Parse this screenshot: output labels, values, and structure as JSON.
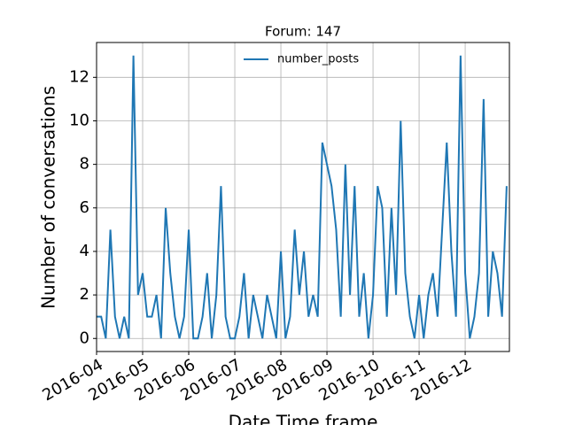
{
  "chart_data": {
    "type": "line",
    "title": "Forum: 147",
    "x_label": "Date Time frame",
    "y_label": "Number of conversations",
    "x": [
      4.0,
      4.1,
      4.2,
      4.3,
      4.4,
      4.5,
      4.6,
      4.7,
      4.8,
      4.9,
      5.0,
      5.1,
      5.2,
      5.3,
      5.4,
      5.5,
      5.6,
      5.7,
      5.8,
      5.9,
      6.0,
      6.1,
      6.2,
      6.3,
      6.4,
      6.5,
      6.6,
      6.7,
      6.8,
      6.9,
      7.0,
      7.1,
      7.2,
      7.3,
      7.4,
      7.5,
      7.6,
      7.7,
      7.8,
      7.9,
      8.0,
      8.1,
      8.2,
      8.3,
      8.4,
      8.5,
      8.6,
      8.7,
      8.8,
      8.9,
      9.0,
      9.1,
      9.2,
      9.3,
      9.4,
      9.5,
      9.6,
      9.7,
      9.8,
      9.9,
      10.0,
      10.1,
      10.2,
      10.3,
      10.4,
      10.5,
      10.6,
      10.7,
      10.8,
      10.9,
      11.0,
      11.1,
      11.2,
      11.3,
      11.4,
      11.5,
      11.6,
      11.7,
      11.8,
      11.9,
      12.0,
      12.1,
      12.2,
      12.3,
      12.4,
      12.5,
      12.6,
      12.7,
      12.8,
      12.9
    ],
    "series": [
      {
        "name": "number_posts",
        "color": "#1f77b4",
        "values": [
          1,
          1,
          0,
          5,
          1,
          0,
          1,
          0,
          13,
          2,
          3,
          1,
          1,
          2,
          0,
          6,
          3,
          1,
          0,
          1,
          5,
          0,
          0,
          1,
          3,
          0,
          2,
          7,
          1,
          0,
          0,
          1,
          3,
          0,
          2,
          1,
          0,
          2,
          1,
          0,
          4,
          0,
          1,
          5,
          2,
          4,
          1,
          2,
          1,
          9,
          8,
          7,
          5,
          1,
          8,
          2,
          7,
          1,
          3,
          0,
          2,
          7,
          6,
          1,
          6,
          2,
          10,
          3,
          1,
          0,
          2,
          0,
          2,
          3,
          1,
          5,
          9,
          4,
          1,
          13,
          3,
          0,
          1,
          3,
          11,
          1,
          4,
          3,
          1,
          7
        ]
      }
    ],
    "xlim": [
      4,
      12.96
    ],
    "ylim": [
      -0.6,
      13.6
    ],
    "xticks": [
      {
        "value": 4,
        "label": "2016-04"
      },
      {
        "value": 5,
        "label": "2016-05"
      },
      {
        "value": 6,
        "label": "2016-06"
      },
      {
        "value": 7,
        "label": "2016-07"
      },
      {
        "value": 8,
        "label": "2016-08"
      },
      {
        "value": 9,
        "label": "2016-09"
      },
      {
        "value": 10,
        "label": "2016-10"
      },
      {
        "value": 11,
        "label": "2016-11"
      },
      {
        "value": 12,
        "label": "2016-12"
      }
    ],
    "yticks": [
      0,
      2,
      4,
      6,
      8,
      10,
      12
    ],
    "grid": true,
    "legend": "upper center"
  }
}
